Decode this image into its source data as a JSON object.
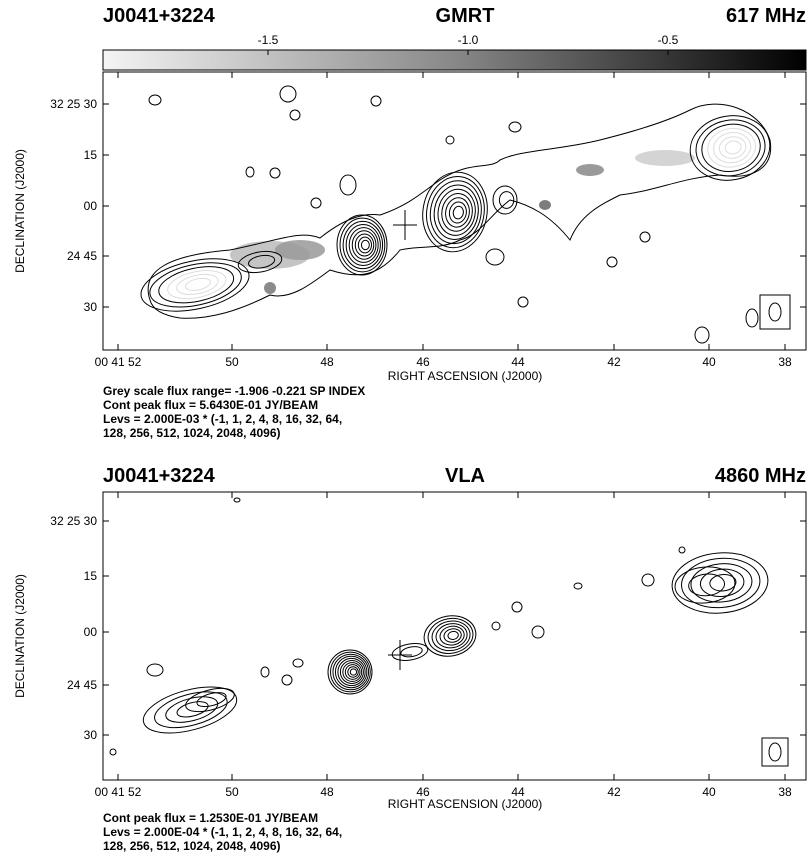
{
  "panels": [
    {
      "source": "J0041+3224",
      "telescope": "GMRT",
      "frequency": "617 MHz",
      "colorbar_ticks": [
        "-1.5",
        "-1.0",
        "-0.5"
      ],
      "y_ticks": [
        "32 25 30",
        "15",
        "00",
        "24 45",
        "30"
      ],
      "x_ticks": [
        "00 41 52",
        "50",
        "48",
        "46",
        "44",
        "42",
        "40",
        "38"
      ],
      "x_label": "RIGHT ASCENSION (J2000)",
      "y_label": "DECLINATION (J2000)",
      "notes": [
        "Grey scale flux range= -1.906 -0.221 SP INDEX",
        "Cont peak flux =  5.6430E-01 JY/BEAM",
        "Levs = 2.000E-03 * (-1, 1, 2, 4, 8, 16, 32, 64,",
        "128, 256, 512, 1024, 2048, 4096)"
      ]
    },
    {
      "source": "J0041+3224",
      "telescope": "VLA",
      "frequency": "4860 MHz",
      "y_ticks": [
        "32 25 30",
        "15",
        "00",
        "24 45",
        "30"
      ],
      "x_ticks": [
        "00 41 52",
        "50",
        "48",
        "46",
        "44",
        "42",
        "40",
        "38"
      ],
      "x_label": "RIGHT ASCENSION (J2000)",
      "y_label": "DECLINATION (J2000)",
      "notes": [
        "Cont peak flux =  1.2530E-01 JY/BEAM",
        "Levs = 2.000E-04 * (-1, 1, 2, 4, 8, 16, 32, 64,",
        "128, 256, 512, 1024, 2048, 4096)"
      ]
    }
  ]
}
